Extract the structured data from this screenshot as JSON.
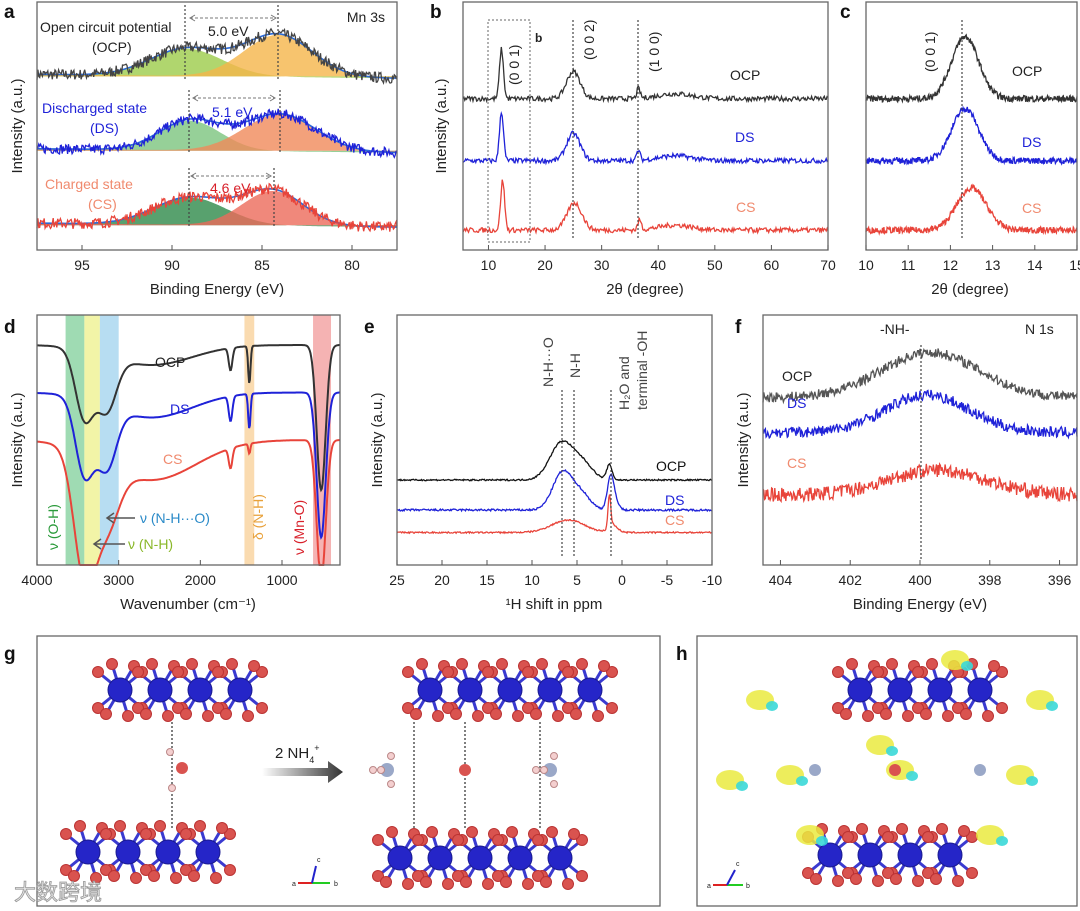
{
  "colors": {
    "ocp": "#333333",
    "ds": "#1f22d8",
    "cs": "#e8443a",
    "cs_label": "#f08a6e",
    "green": "#2a9a3a",
    "blue": "#2a8ac8",
    "orange": "#e8a13a",
    "red": "#d8202a"
  },
  "chart_data": [
    {
      "id": "a",
      "panel_label": "a",
      "type": "line",
      "title": "Mn 3s",
      "xlabel": "Binding Energy (eV)",
      "ylabel": "Intensity (a.u.)",
      "xlim": [
        97.5,
        77.5
      ],
      "ylim": [
        0,
        100
      ],
      "xticks": [
        95,
        90,
        85,
        80
      ],
      "series": [
        {
          "name": "OCP",
          "color": "#444444",
          "offset": 70,
          "noise": 2.2,
          "peaks": [
            [
              89.2,
              11,
              2.0
            ],
            [
              84.1,
              17,
              1.9
            ]
          ]
        },
        {
          "name": "DS",
          "color": "#1f22d8",
          "offset": 40,
          "noise": 2.0,
          "peaks": [
            [
              89.0,
              12,
              1.7
            ],
            [
              84.0,
              15,
              2.0
            ]
          ]
        },
        {
          "name": "CS",
          "color": "#e8443a",
          "offset": 10,
          "noise": 2.2,
          "peaks": [
            [
              89.0,
              11,
              2.0
            ],
            [
              84.4,
              14,
              1.7
            ]
          ]
        }
      ],
      "annotations": {
        "ocp1": "Open circuit potential",
        "ocp2": "(OCP)",
        "ocp_split": "5.0 eV",
        "ds1": "Discharged state",
        "ds2": "(DS)",
        "ds_split": "5.1 eV",
        "cs1": "Charged state",
        "cs2": "(CS)",
        "cs_split": "4.6 eV"
      }
    },
    {
      "id": "b",
      "panel_label": "b",
      "type": "line",
      "xlabel": "2θ (degree)",
      "ylabel": "Intensity (a.u.)",
      "xlim": [
        5.5,
        70
      ],
      "ylim": [
        0,
        100
      ],
      "xticks": [
        10,
        20,
        30,
        40,
        50,
        60,
        70
      ],
      "series": [
        {
          "name": "OCP",
          "color": "#333333",
          "offset": 61,
          "noise": 1.0,
          "peaks": [
            [
              12.3,
              20,
              0.35
            ],
            [
              25.0,
              11,
              1.2
            ],
            [
              36.5,
              4,
              0.3
            ],
            [
              43,
              2,
              3
            ]
          ]
        },
        {
          "name": "DS",
          "color": "#1f22d8",
          "offset": 36,
          "noise": 1.0,
          "peaks": [
            [
              12.3,
              20,
              0.35
            ],
            [
              25.0,
              11,
              1.2
            ],
            [
              36.5,
              4,
              0.3
            ],
            [
              43,
              2,
              3
            ]
          ]
        },
        {
          "name": "CS",
          "color": "#e8443a",
          "offset": 8,
          "noise": 1.0,
          "peaks": [
            [
              12.5,
              20,
              0.35
            ],
            [
              25.2,
              11,
              1.3
            ],
            [
              36.7,
              4,
              0.3
            ],
            [
              43,
              2,
              3
            ]
          ]
        }
      ],
      "annotations": {
        "hkl1": "(0 0 1)",
        "hkl2": "(0 0 2)",
        "hkl3": "(1 0 0)",
        "inset_ref": "b"
      }
    },
    {
      "id": "c",
      "panel_label": "c",
      "type": "line",
      "xlabel": "2θ (degree)",
      "ylabel": "",
      "xlim": [
        10,
        15
      ],
      "ylim": [
        0,
        100
      ],
      "xticks": [
        10,
        11,
        12,
        13,
        14,
        15
      ],
      "series": [
        {
          "name": "OCP",
          "color": "#333333",
          "offset": 61,
          "noise": 1.3,
          "peaks": [
            [
              12.35,
              25,
              0.32
            ]
          ]
        },
        {
          "name": "DS",
          "color": "#1f22d8",
          "offset": 36,
          "noise": 1.3,
          "peaks": [
            [
              12.35,
              21,
              0.32
            ]
          ]
        },
        {
          "name": "CS",
          "color": "#e8443a",
          "offset": 8,
          "noise": 1.3,
          "peaks": [
            [
              12.5,
              17,
              0.35
            ]
          ]
        }
      ],
      "annotations": {
        "hkl1": "(0 0 1)"
      }
    },
    {
      "id": "d",
      "panel_label": "d",
      "type": "line",
      "xlabel": "Wavenumber (cm⁻¹)",
      "ylabel": "Intensity (a.u.)",
      "xlim": [
        4000,
        290
      ],
      "ylim": [
        0,
        100
      ],
      "xticks": [
        4000,
        3000,
        2000,
        1000
      ],
      "series": [
        {
          "name": "OCP",
          "color": "#333333",
          "offset": 88,
          "noise": 0,
          "peaks": [
            [
              3420,
              -27,
              110
            ],
            [
              3150,
              -22,
              120
            ],
            [
              2600,
              -8,
              500
            ],
            [
              1630,
              -9,
              22
            ],
            [
              1400,
              -15,
              14
            ],
            [
              520,
              -58,
              55
            ]
          ]
        },
        {
          "name": "DS",
          "color": "#1f22d8",
          "offset": 69,
          "noise": 0,
          "peaks": [
            [
              3420,
              -30,
              110
            ],
            [
              3150,
              -25,
              120
            ],
            [
              2600,
              -10,
              500
            ],
            [
              1630,
              -10,
              22
            ],
            [
              1400,
              -14,
              14
            ],
            [
              520,
              -58,
              55
            ]
          ]
        },
        {
          "name": "CS",
          "color": "#e8443a",
          "offset": 50,
          "noise": 0,
          "peaks": [
            [
              3420,
              -48,
              130
            ],
            [
              3150,
              -25,
              150
            ],
            [
              2600,
              -16,
              550
            ],
            [
              1630,
              -8,
              22
            ],
            [
              1400,
              -4,
              12
            ],
            [
              520,
              -56,
              55
            ]
          ]
        }
      ],
      "bands": [
        {
          "from": 3650,
          "to": 3420,
          "color": "#7fcf9a"
        },
        {
          "from": 3420,
          "to": 3230,
          "color": "#eef08a"
        },
        {
          "from": 3230,
          "to": 3000,
          "color": "#9fd2ee"
        },
        {
          "from": 1460,
          "to": 1340,
          "color": "#f8cf95"
        },
        {
          "from": 620,
          "to": 400,
          "color": "#f29a9a"
        }
      ],
      "annotations": {
        "oh": "ν (O-H)",
        "nho": "ν (N-H···O)",
        "nh": "ν (N-H)",
        "delta": "δ (N-H)",
        "mno": "ν (Mn-O)"
      }
    },
    {
      "id": "e",
      "panel_label": "e",
      "type": "line",
      "xlabel": "¹H shift in ppm",
      "ylabel": "Intensity (a.u.)",
      "xlim": [
        25,
        -10
      ],
      "ylim": [
        0,
        100
      ],
      "xticks": [
        25,
        20,
        15,
        10,
        5,
        0,
        -5,
        -10
      ],
      "series": [
        {
          "name": "OCP",
          "color": "#111111",
          "offset": 34,
          "noise": 0.3,
          "peaks": [
            [
              6.7,
              15,
              1.3
            ],
            [
              4.3,
              6,
              1.1
            ],
            [
              1.4,
              6,
              0.3
            ]
          ]
        },
        {
          "name": "DS",
          "color": "#1f22d8",
          "offset": 22,
          "noise": 0.4,
          "peaks": [
            [
              6.6,
              15,
              1.1
            ],
            [
              4.5,
              6,
              1.0
            ],
            [
              1.3,
              12,
              0.35
            ],
            [
              0.8,
              4,
              0.4
            ]
          ]
        },
        {
          "name": "CS",
          "color": "#e8443a",
          "offset": 13,
          "noise": 0.3,
          "peaks": [
            [
              6.0,
              5,
              1.8
            ],
            [
              1.4,
              13,
              0.15
            ],
            [
              1.0,
              3,
              0.5
            ]
          ]
        }
      ],
      "annotations": {
        "nho": "N-H···O",
        "nh": "N-H",
        "h2o": "H₂O and",
        "oh": "terminal -OH"
      }
    },
    {
      "id": "f",
      "panel_label": "f",
      "type": "line",
      "title": "N 1s",
      "xlabel": "Binding Energy (eV)",
      "ylabel": "Intensity (a.u.)",
      "xlim": [
        404.5,
        395.5
      ],
      "ylim": [
        0,
        100
      ],
      "xticks": [
        404,
        402,
        400,
        398,
        396
      ],
      "series": [
        {
          "name": "OCP",
          "color": "#555555",
          "offset": 67,
          "noise": 2.0,
          "peaks": [
            [
              399.7,
              18,
              1.4
            ]
          ]
        },
        {
          "name": "DS",
          "color": "#1f22d8",
          "offset": 53,
          "noise": 2.2,
          "peaks": [
            [
              399.8,
              15,
              1.2
            ]
          ]
        },
        {
          "name": "CS",
          "color": "#e8443a",
          "offset": 28,
          "noise": 2.8,
          "peaks": [
            [
              399.5,
              10,
              1.4
            ]
          ]
        }
      ],
      "annotations": {
        "nh": "-NH-"
      }
    }
  ],
  "panel_g": {
    "label": "g",
    "reaction": "2 NH",
    "reaction_sub": "4",
    "reaction_sup": "+",
    "axes": {
      "a": "a",
      "b": "b",
      "c": "c"
    }
  },
  "panel_h": {
    "label": "h",
    "axes": {
      "a": "a",
      "b": "b",
      "c": "c"
    }
  },
  "watermark": "大数跨境"
}
